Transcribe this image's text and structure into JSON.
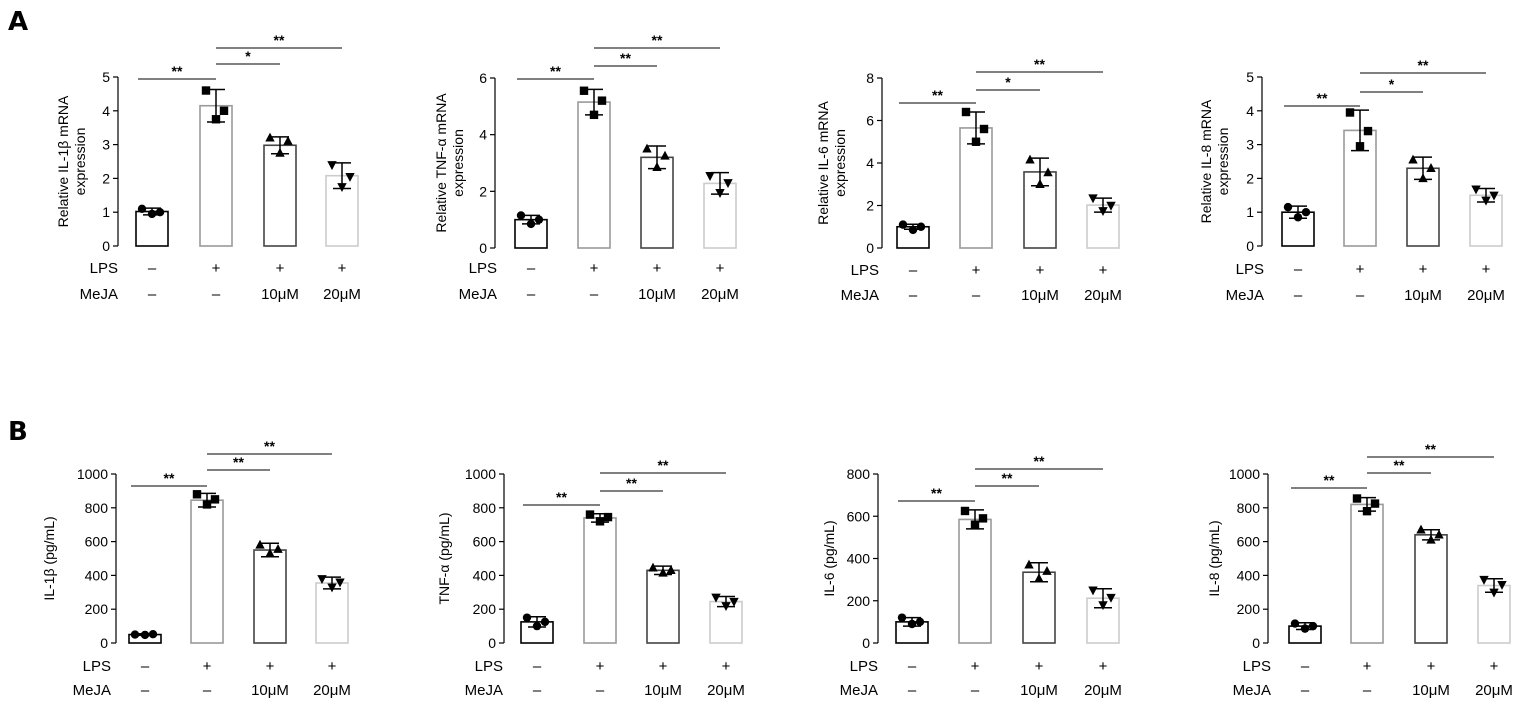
{
  "panel_labels": [
    "A",
    "B"
  ],
  "colors": {
    "bar_stroke": [
      "#000000",
      "#9a9a9a",
      "#444444",
      "#cccccc"
    ],
    "points": "#000000"
  },
  "condition_rows": [
    {
      "label": "LPS",
      "values": [
        "–",
        "+",
        "+",
        "+"
      ]
    },
    {
      "label": "MeJA",
      "values": [
        "–",
        "–",
        "10μM",
        "20μM"
      ]
    }
  ],
  "chart_data": [
    {
      "type": "bar",
      "panel": "A",
      "ylabel": [
        "Relative IL-1β mRNA",
        "expression"
      ],
      "ylim": [
        0,
        5
      ],
      "yticks": [
        0,
        1,
        2,
        3,
        4,
        5
      ],
      "values": [
        1.02,
        4.15,
        2.98,
        2.08
      ],
      "points": [
        [
          1.1,
          0.95,
          1.0
        ],
        [
          4.6,
          3.75,
          4.0
        ],
        [
          3.2,
          2.75,
          3.1
        ],
        [
          2.4,
          1.75,
          2.05
        ]
      ],
      "error": [
        0.1,
        0.48,
        0.25,
        0.38
      ],
      "markers": [
        "circle",
        "square",
        "triangle",
        "triangle-down"
      ],
      "sig": [
        {
          "from": 0,
          "to": 1,
          "label": "**"
        },
        {
          "from": 1,
          "to": 2,
          "label": "*"
        },
        {
          "from": 1,
          "to": 3,
          "label": "**"
        }
      ]
    },
    {
      "type": "bar",
      "panel": "A",
      "ylabel": [
        "Relative TNF-α mRNA",
        "expression"
      ],
      "ylim": [
        0,
        6
      ],
      "yticks": [
        0,
        2,
        4,
        6
      ],
      "values": [
        1.0,
        5.15,
        3.2,
        2.28
      ],
      "points": [
        [
          1.15,
          0.85,
          1.0
        ],
        [
          5.55,
          4.7,
          5.2
        ],
        [
          3.5,
          2.85,
          3.25
        ],
        [
          2.55,
          1.95,
          2.3
        ]
      ],
      "error": [
        0.15,
        0.45,
        0.4,
        0.38
      ],
      "markers": [
        "circle",
        "square",
        "triangle",
        "triangle-down"
      ],
      "sig": [
        {
          "from": 0,
          "to": 1,
          "label": "**"
        },
        {
          "from": 1,
          "to": 2,
          "label": "**"
        },
        {
          "from": 1,
          "to": 3,
          "label": "**"
        }
      ]
    },
    {
      "type": "bar",
      "panel": "A",
      "ylabel": [
        "Relative IL-6 mRNA",
        "expression"
      ],
      "ylim": [
        0,
        8
      ],
      "yticks": [
        0,
        2,
        4,
        6,
        8
      ],
      "values": [
        1.0,
        5.65,
        3.58,
        2.02
      ],
      "points": [
        [
          1.1,
          0.85,
          1.0
        ],
        [
          6.4,
          5.0,
          5.6
        ],
        [
          4.15,
          3.0,
          3.55
        ],
        [
          2.35,
          1.75,
          2.0
        ]
      ],
      "error": [
        0.12,
        0.75,
        0.65,
        0.33
      ],
      "markers": [
        "circle",
        "square",
        "triangle",
        "triangle-down"
      ],
      "sig": [
        {
          "from": 0,
          "to": 1,
          "label": "**"
        },
        {
          "from": 1,
          "to": 2,
          "label": "*"
        },
        {
          "from": 1,
          "to": 3,
          "label": "**"
        }
      ]
    },
    {
      "type": "bar",
      "panel": "A",
      "ylabel": [
        "Relative IL-8 mRNA",
        "expression"
      ],
      "ylim": [
        0,
        5
      ],
      "yticks": [
        0,
        1,
        2,
        3,
        4,
        5
      ],
      "values": [
        1.0,
        3.42,
        2.3,
        1.5
      ],
      "points": [
        [
          1.15,
          0.85,
          1.0
        ],
        [
          3.95,
          2.95,
          3.4
        ],
        [
          2.55,
          2.0,
          2.3
        ],
        [
          1.68,
          1.35,
          1.5
        ]
      ],
      "error": [
        0.18,
        0.6,
        0.33,
        0.2
      ],
      "markers": [
        "circle",
        "square",
        "triangle",
        "triangle-down"
      ],
      "sig": [
        {
          "from": 0,
          "to": 1,
          "label": "**"
        },
        {
          "from": 1,
          "to": 2,
          "label": "*"
        },
        {
          "from": 1,
          "to": 3,
          "label": "**"
        }
      ]
    },
    {
      "type": "bar",
      "panel": "B",
      "ylabel": [
        "IL-1β (pg/mL)"
      ],
      "ylim": [
        0,
        1000
      ],
      "yticks": [
        0,
        200,
        400,
        600,
        800,
        1000
      ],
      "values": [
        50,
        845,
        550,
        355
      ],
      "points": [
        [
          50,
          48,
          52
        ],
        [
          880,
          820,
          850
        ],
        [
          580,
          530,
          555
        ],
        [
          380,
          330,
          360
        ]
      ],
      "error": [
        5,
        40,
        40,
        35
      ],
      "markers": [
        "circle",
        "square",
        "triangle",
        "triangle-down"
      ],
      "sig": [
        {
          "from": 0,
          "to": 1,
          "label": "**"
        },
        {
          "from": 1,
          "to": 2,
          "label": "**"
        },
        {
          "from": 1,
          "to": 3,
          "label": "**"
        }
      ]
    },
    {
      "type": "bar",
      "panel": "B",
      "ylabel": [
        "TNF-α (pg/mL)"
      ],
      "ylim": [
        0,
        1000
      ],
      "yticks": [
        0,
        200,
        400,
        600,
        800,
        1000
      ],
      "values": [
        125,
        740,
        430,
        245
      ],
      "points": [
        [
          150,
          100,
          125
        ],
        [
          760,
          720,
          745
        ],
        [
          445,
          415,
          430
        ],
        [
          270,
          220,
          245
        ]
      ],
      "error": [
        30,
        25,
        25,
        30
      ],
      "markers": [
        "circle",
        "square",
        "triangle",
        "triangle-down"
      ],
      "sig": [
        {
          "from": 0,
          "to": 1,
          "label": "**"
        },
        {
          "from": 1,
          "to": 2,
          "label": "**"
        },
        {
          "from": 1,
          "to": 3,
          "label": "**"
        }
      ]
    },
    {
      "type": "bar",
      "panel": "B",
      "ylabel": [
        "IL-6 (pg/mL)"
      ],
      "ylim": [
        0,
        800
      ],
      "yticks": [
        0,
        200,
        400,
        600,
        800
      ],
      "values": [
        100,
        585,
        335,
        212
      ],
      "points": [
        [
          120,
          90,
          100
        ],
        [
          625,
          560,
          590
        ],
        [
          370,
          305,
          340
        ],
        [
          250,
          180,
          215
        ]
      ],
      "error": [
        20,
        45,
        45,
        45
      ],
      "markers": [
        "circle",
        "square",
        "triangle",
        "triangle-down"
      ],
      "sig": [
        {
          "from": 0,
          "to": 1,
          "label": "**"
        },
        {
          "from": 1,
          "to": 2,
          "label": "**"
        },
        {
          "from": 1,
          "to": 3,
          "label": "**"
        }
      ]
    },
    {
      "type": "bar",
      "panel": "B",
      "ylabel": [
        "IL-8 (pg/mL)"
      ],
      "ylim": [
        0,
        1000
      ],
      "yticks": [
        0,
        200,
        400,
        600,
        800,
        1000
      ],
      "values": [
        100,
        820,
        640,
        340
      ],
      "points": [
        [
          115,
          85,
          100
        ],
        [
          855,
          780,
          825
        ],
        [
          670,
          610,
          640
        ],
        [
          375,
          300,
          345
        ]
      ],
      "error": [
        20,
        40,
        30,
        40
      ],
      "markers": [
        "circle",
        "square",
        "triangle",
        "triangle-down"
      ],
      "sig": [
        {
          "from": 0,
          "to": 1,
          "label": "**"
        },
        {
          "from": 1,
          "to": 2,
          "label": "**"
        },
        {
          "from": 1,
          "to": 3,
          "label": "**"
        }
      ]
    }
  ]
}
